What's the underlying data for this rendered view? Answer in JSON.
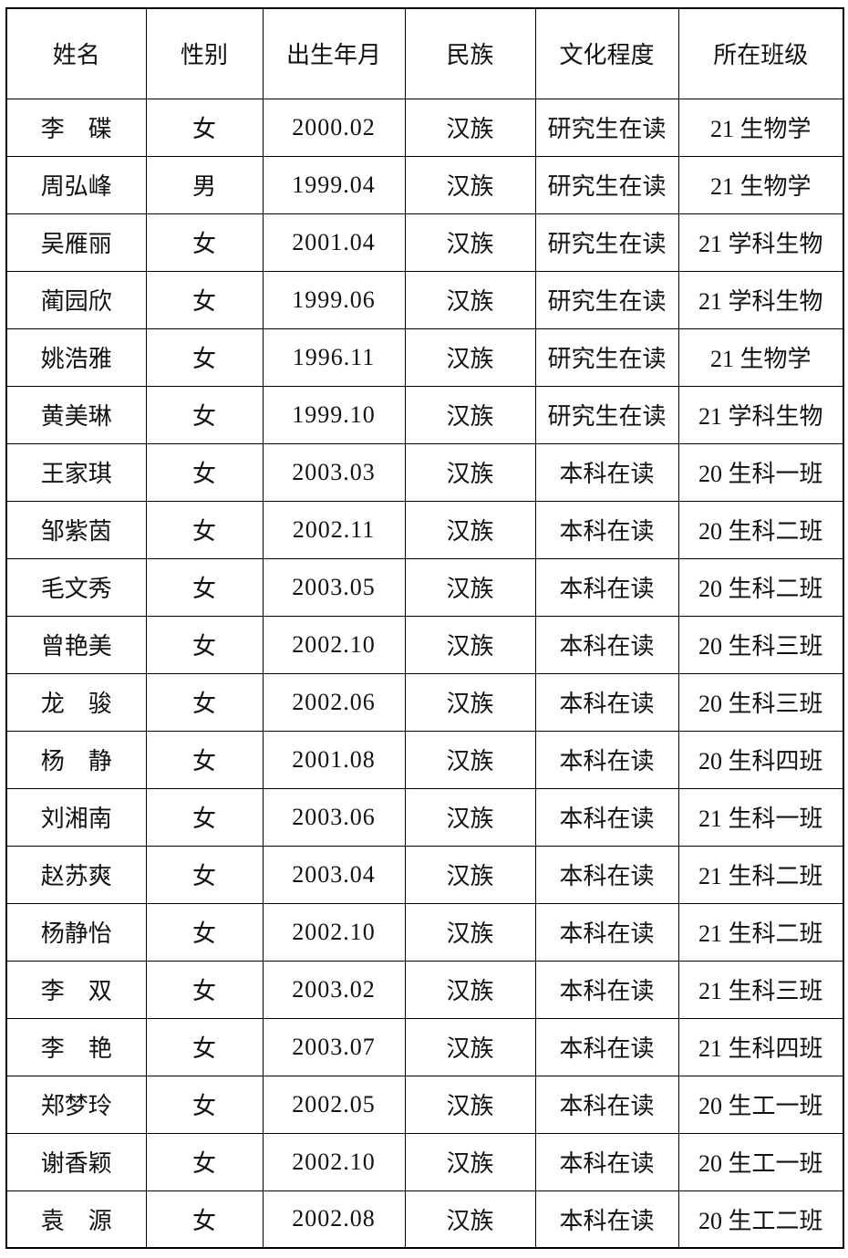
{
  "table": {
    "headers": [
      "姓名",
      "性别",
      "出生年月",
      "民族",
      "文化程度",
      "所在班级"
    ],
    "column_keys": [
      "name",
      "gender",
      "birth-date",
      "ethnicity",
      "education-level",
      "class"
    ],
    "rows": [
      [
        "李　碟",
        "女",
        "2000.02",
        "汉族",
        "研究生在读",
        "21 生物学"
      ],
      [
        "周弘峰",
        "男",
        "1999.04",
        "汉族",
        "研究生在读",
        "21 生物学"
      ],
      [
        "吴雁丽",
        "女",
        "2001.04",
        "汉族",
        "研究生在读",
        "21 学科生物"
      ],
      [
        "蔺园欣",
        "女",
        "1999.06",
        "汉族",
        "研究生在读",
        "21 学科生物"
      ],
      [
        "姚浩雅",
        "女",
        "1996.11",
        "汉族",
        "研究生在读",
        "21 生物学"
      ],
      [
        "黄美琳",
        "女",
        "1999.10",
        "汉族",
        "研究生在读",
        "21 学科生物"
      ],
      [
        "王家琪",
        "女",
        "2003.03",
        "汉族",
        "本科在读",
        "20 生科一班"
      ],
      [
        "邹紫茵",
        "女",
        "2002.11",
        "汉族",
        "本科在读",
        "20 生科二班"
      ],
      [
        "毛文秀",
        "女",
        "2003.05",
        "汉族",
        "本科在读",
        "20 生科二班"
      ],
      [
        "曾艳美",
        "女",
        "2002.10",
        "汉族",
        "本科在读",
        "20 生科三班"
      ],
      [
        "龙　骏",
        "女",
        "2002.06",
        "汉族",
        "本科在读",
        "20 生科三班"
      ],
      [
        "杨　静",
        "女",
        "2001.08",
        "汉族",
        "本科在读",
        "20 生科四班"
      ],
      [
        "刘湘南",
        "女",
        "2003.06",
        "汉族",
        "本科在读",
        "21 生科一班"
      ],
      [
        "赵苏爽",
        "女",
        "2003.04",
        "汉族",
        "本科在读",
        "21 生科二班"
      ],
      [
        "杨静怡",
        "女",
        "2002.10",
        "汉族",
        "本科在读",
        "21 生科二班"
      ],
      [
        "李　双",
        "女",
        "2003.02",
        "汉族",
        "本科在读",
        "21 生科三班"
      ],
      [
        "李　艳",
        "女",
        "2003.07",
        "汉族",
        "本科在读",
        "21 生科四班"
      ],
      [
        "郑梦玲",
        "女",
        "2002.05",
        "汉族",
        "本科在读",
        "20 生工一班"
      ],
      [
        "谢香颖",
        "女",
        "2002.10",
        "汉族",
        "本科在读",
        "20 生工一班"
      ],
      [
        "袁　源",
        "女",
        "2002.08",
        "汉族",
        "本科在读",
        "20 生工二班"
      ]
    ]
  }
}
